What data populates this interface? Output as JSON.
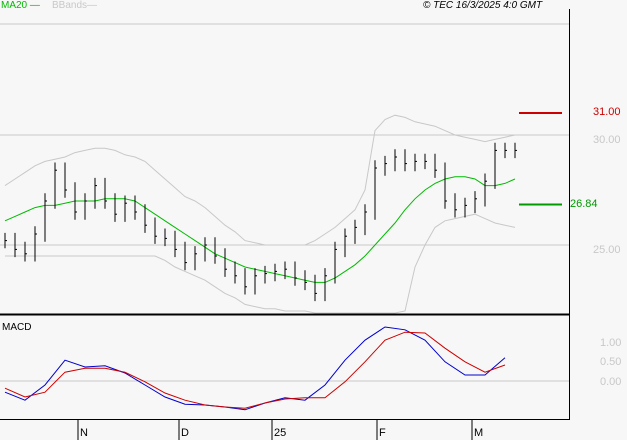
{
  "legend": {
    "ma": "MA20",
    "bbands": "BBands"
  },
  "copyright": "© TEC 16/3/2025 4:0 GMT",
  "macd_label": "MACD",
  "colors": {
    "ma": "#00bb00",
    "bands": "#c8c8c8",
    "resistance": "#cc0000",
    "support": "#009900",
    "macd": "#0000cc",
    "signal": "#cc0000",
    "price": "#000000"
  },
  "chart_data": {
    "type": "line",
    "title": "",
    "x_ticks": [
      "N",
      "D",
      "25",
      "F",
      "M"
    ],
    "y_ticks": [
      "30.00",
      "25.00"
    ],
    "ylim": [
      21.2,
      35
    ],
    "resistance": {
      "value": 31.0,
      "label": "31.00"
    },
    "support": {
      "value": 26.84,
      "label": "26.84"
    },
    "close": [
      25.2,
      24.8,
      24.6,
      25.5,
      27.0,
      28.4,
      27.5,
      26.5,
      27.0,
      27.7,
      27.0,
      26.4,
      26.9,
      26.5,
      25.9,
      25.4,
      25.3,
      24.8,
      24.2,
      24.6,
      25.0,
      24.5,
      23.9,
      23.6,
      23.1,
      23.6,
      23.7,
      23.8,
      23.9,
      23.5,
      23.3,
      22.8,
      23.6,
      24.8,
      25.4,
      25.8,
      26.5,
      28.5,
      28.7,
      29.0,
      28.7,
      28.8,
      28.8,
      28.4,
      27.0,
      26.6,
      26.8,
      27.1,
      27.9,
      29.3,
      29.3,
      29.3
    ],
    "ma20": [
      26.1,
      26.3,
      26.5,
      26.7,
      26.8,
      26.8,
      26.9,
      27.0,
      27.0,
      27.0,
      27.1,
      27.1,
      27.1,
      27.0,
      26.7,
      26.4,
      26.1,
      25.8,
      25.5,
      25.2,
      24.9,
      24.6,
      24.4,
      24.2,
      24.0,
      23.9,
      23.8,
      23.7,
      23.6,
      23.5,
      23.4,
      23.3,
      23.3,
      23.5,
      23.8,
      24.1,
      24.5,
      25.0,
      25.5,
      26.0,
      26.6,
      27.1,
      27.5,
      27.8,
      28.0,
      28.1,
      28.1,
      28.0,
      27.7,
      27.7,
      27.8,
      28.0
    ],
    "band_upper": [
      27.7,
      28.0,
      28.3,
      28.6,
      28.8,
      28.9,
      29.0,
      29.2,
      29.3,
      29.4,
      29.4,
      29.3,
      29.1,
      29.0,
      28.8,
      28.4,
      28.0,
      27.6,
      27.2,
      27.0,
      26.7,
      26.3,
      25.9,
      25.6,
      25.2,
      25.1,
      25.0,
      25.0,
      25.0,
      25.0,
      25.0,
      25.2,
      25.5,
      25.8,
      26.2,
      26.6,
      27.5,
      30.2,
      30.7,
      30.9,
      30.8,
      30.6,
      30.5,
      30.4,
      30.2,
      30.0,
      29.9,
      29.8,
      29.7,
      29.8,
      29.9,
      30.0
    ],
    "band_lower": [
      24.5,
      24.5,
      24.5,
      24.5,
      24.5,
      24.5,
      24.5,
      24.5,
      24.5,
      24.5,
      24.5,
      24.5,
      24.5,
      24.5,
      24.5,
      24.5,
      24.3,
      24.0,
      23.8,
      23.6,
      23.4,
      23.1,
      22.8,
      22.6,
      22.3,
      22.2,
      22.1,
      22.1,
      22.0,
      22.0,
      22.0,
      21.8,
      21.6,
      21.4,
      21.2,
      21.2,
      21.2,
      21.2,
      21.2,
      21.2,
      22.0,
      24.0,
      25.0,
      25.8,
      26.1,
      26.2,
      26.3,
      26.4,
      26.2,
      26.0,
      25.9,
      25.8
    ],
    "macd": {
      "yticks": [
        "1.00",
        "0.50",
        "0.00"
      ],
      "macd": [
        -0.28,
        -0.48,
        -0.1,
        0.52,
        0.35,
        0.38,
        0.2,
        -0.1,
        -0.4,
        -0.58,
        -0.6,
        -0.65,
        -0.72,
        -0.55,
        -0.42,
        -0.48,
        -0.1,
        0.52,
        1.02,
        1.35,
        1.28,
        1.02,
        0.48,
        0.15,
        0.15,
        0.58
      ],
      "signal": [
        -0.18,
        -0.4,
        -0.28,
        0.22,
        0.32,
        0.32,
        0.22,
        -0.02,
        -0.3,
        -0.48,
        -0.6,
        -0.65,
        -0.68,
        -0.55,
        -0.45,
        -0.42,
        -0.42,
        -0.02,
        0.48,
        1.02,
        1.22,
        1.2,
        0.82,
        0.48,
        0.22,
        0.4
      ]
    }
  }
}
